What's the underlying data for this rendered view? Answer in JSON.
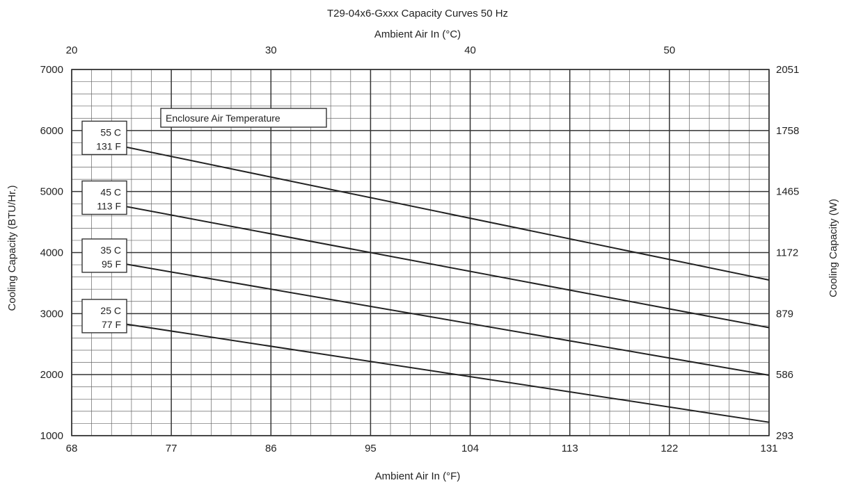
{
  "chart_data": {
    "type": "line",
    "title": "T29-04x6-Gxxx Capacity Curves 50 Hz",
    "top_axis_label": "Ambient Air In (°C)",
    "top_ticks": [
      "20",
      "30",
      "40",
      "50"
    ],
    "xlabel": "Ambient Air In (°F)",
    "x_ticks": [
      "68",
      "77",
      "86",
      "95",
      "104",
      "113",
      "122",
      "131"
    ],
    "xlim": [
      68,
      131
    ],
    "ylabel": "Cooling Capacity (BTU/Hr.)",
    "y_ticks": [
      "1000",
      "2000",
      "3000",
      "4000",
      "5000",
      "6000",
      "7000"
    ],
    "ylim": [
      1000,
      7000
    ],
    "right_axis_label": "Cooling Capacity (W)",
    "right_ticks": [
      "293",
      "586",
      "879",
      "1172",
      "1465",
      "1758",
      "2051"
    ],
    "grid": true,
    "legend_title": "Enclosure Air Temperature",
    "series": [
      {
        "name": "55 C / 131 F",
        "label_c": "55 C",
        "label_f": "131 F",
        "x": [
          71,
          131
        ],
        "values": [
          5800,
          3550
        ]
      },
      {
        "name": "45 C / 113 F",
        "label_c": "45 C",
        "label_f": "113 F",
        "x": [
          71,
          131
        ],
        "values": [
          4820,
          2770
        ]
      },
      {
        "name": "35 C / 95 F",
        "label_c": "35 C",
        "label_f": "95 F",
        "x": [
          71,
          131
        ],
        "values": [
          3870,
          1990
        ]
      },
      {
        "name": "25 C / 77 F",
        "label_c": "25 C",
        "label_f": "77 F",
        "x": [
          71,
          131
        ],
        "values": [
          2880,
          1220
        ]
      }
    ]
  }
}
